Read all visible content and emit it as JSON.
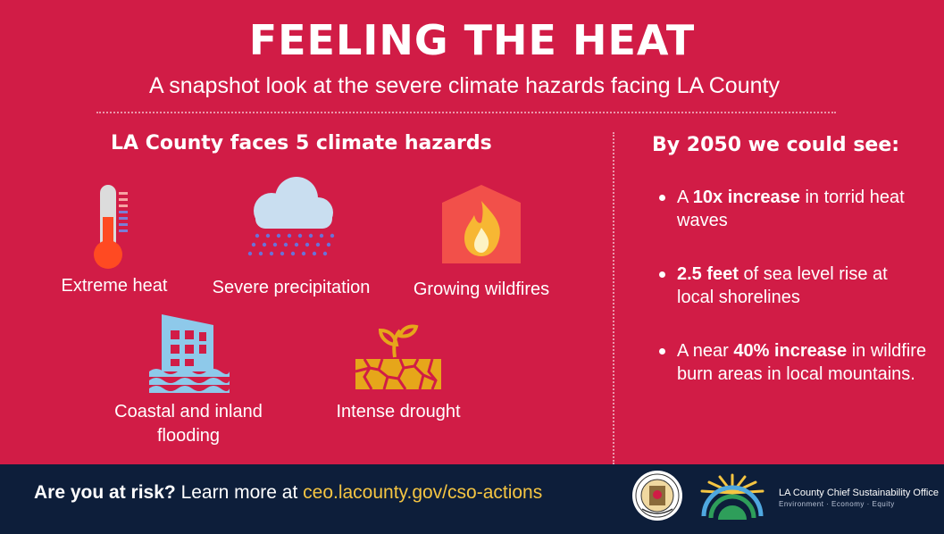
{
  "header": {
    "title": "FEELING THE HEAT",
    "subtitle": "A snapshot look at the severe climate hazards facing LA County"
  },
  "hazards": {
    "title": "LA County faces 5 climate hazards",
    "items": [
      {
        "label": "Extreme heat",
        "icon": "thermometer-icon"
      },
      {
        "label": "Severe precipitation",
        "icon": "rain-cloud-icon"
      },
      {
        "label": "Growing wildfires",
        "icon": "fire-icon"
      },
      {
        "label": "Coastal and inland flooding",
        "icon": "flooded-building-icon"
      },
      {
        "label": "Intense drought",
        "icon": "drought-icon"
      }
    ]
  },
  "forecast": {
    "title": "By 2050 we could see:",
    "items": [
      {
        "pre": "A ",
        "bold": "10x increase",
        "post": " in torrid heat waves"
      },
      {
        "pre": "",
        "bold": "2.5 feet",
        "post": " of sea level rise at local shorelines"
      },
      {
        "pre": "A near ",
        "bold": "40% increase",
        "post": " in wildfire burn areas in local mountains."
      }
    ]
  },
  "footer": {
    "cta_bold": "Are you at risk?",
    "cta_text": " Learn more at ",
    "cta_url": "ceo.lacounty.gov/cso-actions",
    "org_name": "LA County Chief Sustainability Office",
    "org_tagline": "Environment · Economy · Equity"
  },
  "colors": {
    "background": "#d11c46",
    "footer": "#0d1e3a",
    "link": "#f5c542",
    "icon_fire": "#f2504a",
    "icon_water": "#8ec9ea",
    "icon_drought": "#e6a61a"
  }
}
